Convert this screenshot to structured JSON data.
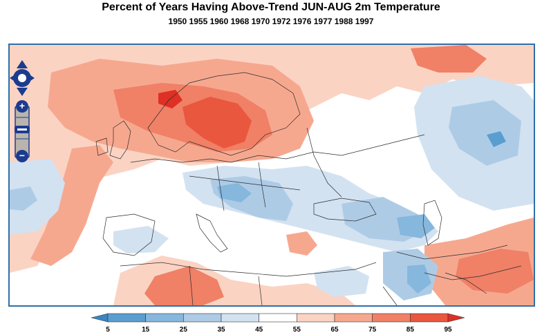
{
  "title": "Percent of Years Having Above-Trend JUN-AUG 2m Temperature",
  "subtitle": "1950 1955 1960 1968 1970 1972 1976 1977 1988 1997",
  "map": {
    "region": "Europe, North Africa and Middle East",
    "zoom_controls": {
      "zoom_in": "+",
      "zoom_out": "−"
    }
  },
  "colorbar": {
    "tick_labels": [
      "5",
      "15",
      "25",
      "35",
      "45",
      "55",
      "65",
      "75",
      "85",
      "95"
    ],
    "colors": [
      "#3a85c2",
      "#5a9ed0",
      "#86b7dd",
      "#aecbe6",
      "#d2e2f1",
      "#ffffff",
      "#fbd3c3",
      "#f6a88f",
      "#f08066",
      "#e9573f",
      "#de3025"
    ],
    "frame_color": "#2f6fa8"
  }
}
